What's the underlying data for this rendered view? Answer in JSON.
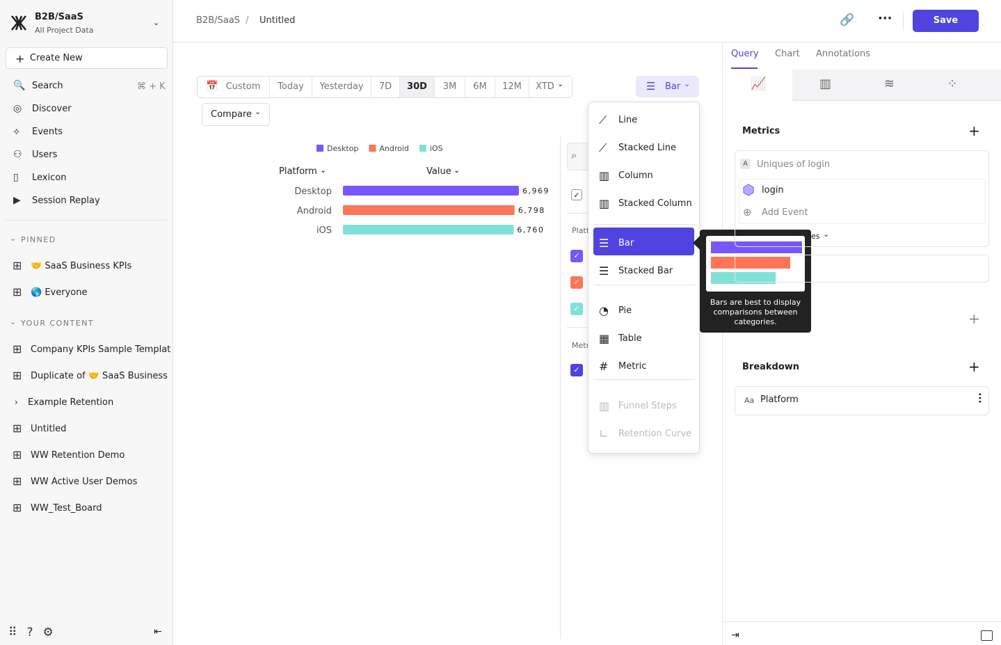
{
  "sidebar": {
    "project": "B2B/SaaS",
    "subtitle": "All Project Data",
    "create": "Create New",
    "search_shortcut": "⌘ + K",
    "nav": [
      "Search",
      "Discover",
      "Events",
      "Users",
      "Lexicon",
      "Session Replay"
    ],
    "pinned_header": "PINNED",
    "pinned": [
      "🤝 SaaS Business KPIs",
      "🌎 Everyone"
    ],
    "content_header": "YOUR CONTENT",
    "content": [
      "Company KPIs Sample Templat",
      "Duplicate of 🤝 SaaS Business",
      "Example Retention",
      "Untitled",
      "WW Retention Demo",
      "WW Active User Demos",
      "WW_Test_Board"
    ]
  },
  "header": {
    "breadcrumb": [
      "B2B/SaaS",
      "Untitled"
    ],
    "separator": "/",
    "save": "Save"
  },
  "date_range": {
    "options": [
      "Custom",
      "Today",
      "Yesterday",
      "7D",
      "30D",
      "3M",
      "6M",
      "12M",
      "XTD"
    ],
    "selected": "30D"
  },
  "compare": "Compare",
  "chart_type_button": "Bar",
  "chart": {
    "type": "bar",
    "columns": [
      "Platform",
      "Value"
    ],
    "categories": [
      "Desktop",
      "Android",
      "iOS"
    ],
    "values": [
      6969,
      6798,
      6760
    ],
    "value_labels": [
      "6,969",
      "6,798",
      "6,760"
    ],
    "colors": [
      "#7856ff",
      "#ff7557",
      "#80e1d9"
    ]
  },
  "side_panel": {
    "labels": [
      "Platf",
      "Metr"
    ]
  },
  "chart_menu": {
    "items": [
      {
        "label": "Line"
      },
      {
        "label": "Stacked Line"
      },
      {
        "label": "Column"
      },
      {
        "label": "Stacked Column"
      },
      {
        "label": "Bar",
        "selected": true
      },
      {
        "label": "Stacked Bar"
      },
      {
        "label": "Pie"
      },
      {
        "label": "Table"
      },
      {
        "label": "Metric"
      },
      {
        "label": "Funnel Steps",
        "disabled": true
      },
      {
        "label": "Retention Curve",
        "disabled": true
      }
    ],
    "tooltip": "Bars are best to display comparisons between categories."
  },
  "query_panel": {
    "tabs": [
      "Query",
      "Chart",
      "Annotations"
    ],
    "metrics_title": "Metrics",
    "metric_badge": "A",
    "metric_name": "Uniques of login",
    "event": "login",
    "add_event": "Add Event",
    "partial": "es",
    "breakdown_title": "Breakdown",
    "breakdown_badge": "Aa",
    "breakdown_property": "Platform"
  }
}
